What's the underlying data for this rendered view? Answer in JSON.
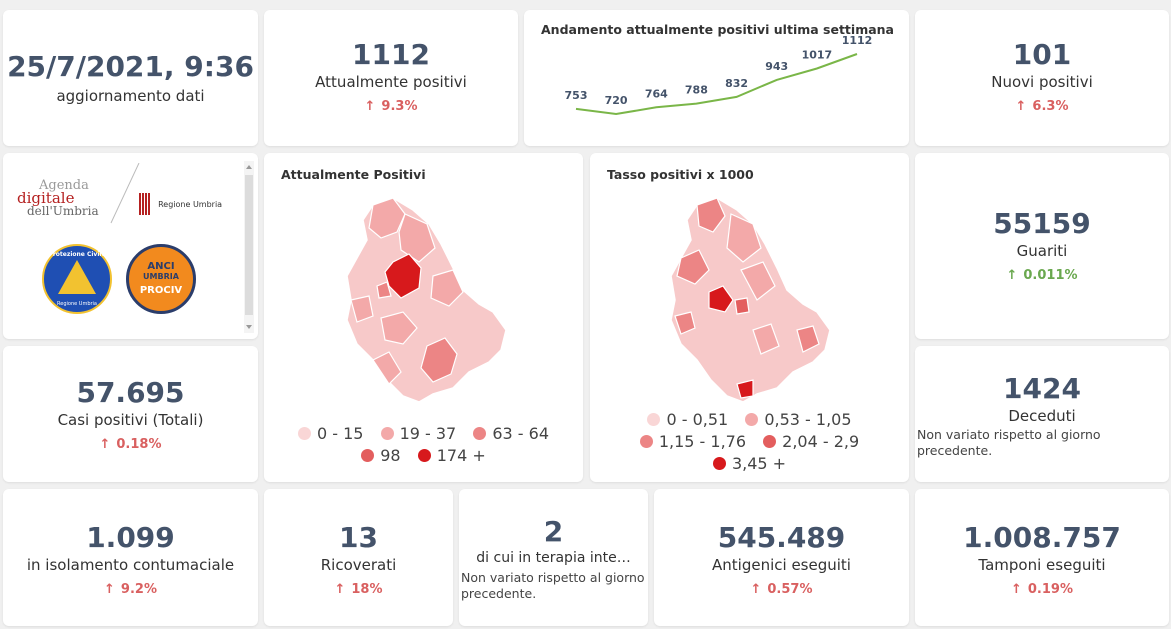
{
  "date_card": {
    "value": "25/7/2021, 9:36",
    "label": "aggiornamento dati"
  },
  "attualmente_positivi": {
    "value": "1112",
    "label": "Attualmente positivi",
    "trend": "9.3%"
  },
  "week_chart": {
    "title": "Andamento attualmente positivi ultima settimana",
    "point_labels": [
      "753",
      "720",
      "764",
      "788",
      "832",
      "943",
      "1017",
      "1112"
    ],
    "line_color": "#7ab648"
  },
  "nuovi_positivi": {
    "value": "101",
    "label": "Nuovi positivi",
    "trend": "6.3%"
  },
  "logos": {
    "agenda_line1": "Agenda",
    "agenda_line2": "digitale",
    "agenda_line3": "dell'Umbria",
    "regione": "Regione Umbria",
    "protezione": "Protezione Civile",
    "protezione_sub": "Regione Umbria",
    "anci": "ANCI",
    "anci_umbria": "UMBRIA",
    "prociv": "PROCIV"
  },
  "map1": {
    "title": "Attualmente Positivi",
    "legend": [
      {
        "label": "0 - 15",
        "color": "#f9d6d6"
      },
      {
        "label": "19 - 37",
        "color": "#f3a9a9"
      },
      {
        "label": "63 - 64",
        "color": "#ec8585"
      },
      {
        "label": "98",
        "color": "#e35e5e"
      },
      {
        "label": "174 +",
        "color": "#d7191c"
      }
    ]
  },
  "map2": {
    "title": "Tasso positivi x 1000",
    "legend": [
      {
        "label": "0 - 0,51",
        "color": "#f9d6d6"
      },
      {
        "label": "0,53 - 1,05",
        "color": "#f3a9a9"
      },
      {
        "label": "1,15 - 1,76",
        "color": "#ec8585"
      },
      {
        "label": "2,04 - 2,9",
        "color": "#e35e5e"
      },
      {
        "label": "3,45 +",
        "color": "#d7191c"
      }
    ]
  },
  "guariti": {
    "value": "55159",
    "label": "Guariti",
    "trend": "0.011%"
  },
  "casi_totali": {
    "value": "57.695",
    "label": "Casi positivi (Totali)",
    "trend": "0.18%"
  },
  "deceduti": {
    "value": "1424",
    "label": "Deceduti",
    "note": "Non variato rispetto al giorno precedente."
  },
  "isolamento": {
    "value": "1.099",
    "label": "in isolamento contumaciale",
    "trend": "9.2%"
  },
  "ricoverati": {
    "value": "13",
    "label": "Ricoverati",
    "trend": "18%"
  },
  "terapia": {
    "value": "2",
    "label": "di cui in terapia inte…",
    "note": "Non variato rispetto al giorno precedente."
  },
  "antigenici": {
    "value": "545.489",
    "label": "Antigenici eseguiti",
    "trend": "0.57%"
  },
  "tamponi": {
    "value": "1.008.757",
    "label": "Tamponi eseguiti",
    "trend": "0.19%"
  },
  "colors": {
    "trend_up_red": "#d96060",
    "trend_up_green": "#6aa84f",
    "value_text": "#44536a"
  },
  "icons": {
    "trend_up": "arrow-up-icon"
  }
}
